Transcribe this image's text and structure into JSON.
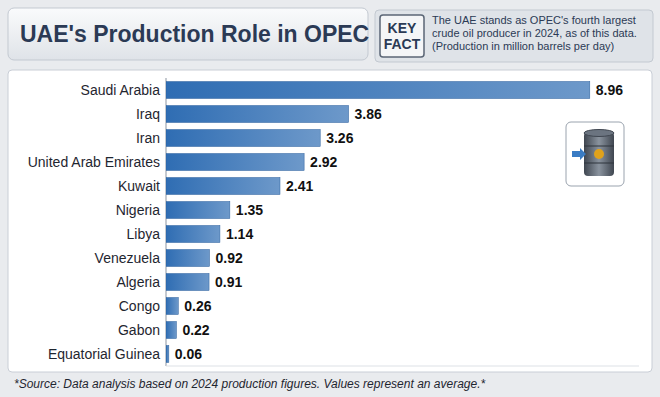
{
  "chart_data": {
    "type": "bar",
    "title": "UAE's Production Role in OPEC",
    "orientation": "horizontal",
    "categories": [
      "Saudi Arabia",
      "Iraq",
      "Iran",
      "United Arab Emirates",
      "Kuwait",
      "Nigeria",
      "Libya",
      "Venezuela",
      "Algeria",
      "Congo",
      "Gabon",
      "Equatorial Guinea"
    ],
    "values": [
      8.96,
      3.86,
      3.26,
      2.92,
      2.41,
      1.35,
      1.14,
      0.92,
      0.91,
      0.26,
      0.22,
      0.06
    ],
    "color": "#2f6db3",
    "xlim": [
      0,
      10
    ],
    "data_labels": true,
    "tick_labels": "y",
    "grid": false,
    "annotations": [
      {
        "title": "KEY FACT",
        "text": [
          "The UAE stands as OPEC's fourth largest",
          "crude oil producer in 2024, as of this data.",
          "(Production in million barrels per day)"
        ]
      }
    ],
    "source": "*Source: Data analysis based on 2024 production figures. Values represent an average.*"
  }
}
